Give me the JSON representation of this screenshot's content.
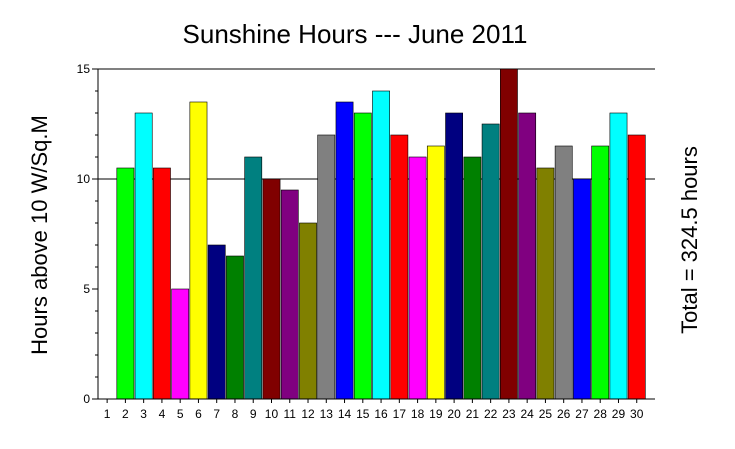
{
  "chart_data": {
    "type": "bar",
    "title": "Sunshine Hours --- June 2011",
    "ylabel": "Hours above 10 W/Sq.M",
    "right_label": "Total = 324.5 hours",
    "ylim": [
      0,
      15
    ],
    "yticks": [
      "0",
      "5",
      "10",
      "15"
    ],
    "grid": "horizontal at 10 and 15",
    "categories": [
      "1",
      "2",
      "3",
      "4",
      "5",
      "6",
      "7",
      "8",
      "9",
      "10",
      "11",
      "12",
      "13",
      "14",
      "15",
      "16",
      "17",
      "18",
      "19",
      "20",
      "21",
      "22",
      "23",
      "24",
      "25",
      "26",
      "27",
      "28",
      "29",
      "30"
    ],
    "values": [
      0,
      10.5,
      13,
      10.5,
      5,
      13.5,
      7,
      6.5,
      11,
      10,
      9.5,
      8,
      12,
      13.5,
      13,
      14,
      12,
      11,
      11.5,
      13,
      11,
      12.5,
      15,
      13,
      10.5,
      11.5,
      10,
      11.5,
      13,
      12
    ],
    "colors": [
      "#000000",
      "#00ff00",
      "#00ffff",
      "#ff0000",
      "#ff00ff",
      "#ffff00",
      "#000080",
      "#008000",
      "#008080",
      "#800000",
      "#800080",
      "#808000",
      "#808080",
      "#0000ff",
      "#00ff00",
      "#00ffff",
      "#ff0000",
      "#ff00ff",
      "#ffff00",
      "#000080",
      "#008000",
      "#008080",
      "#800000",
      "#800080",
      "#808000",
      "#808080",
      "#0000ff",
      "#00ff00",
      "#00ffff",
      "#ff0000"
    ]
  }
}
